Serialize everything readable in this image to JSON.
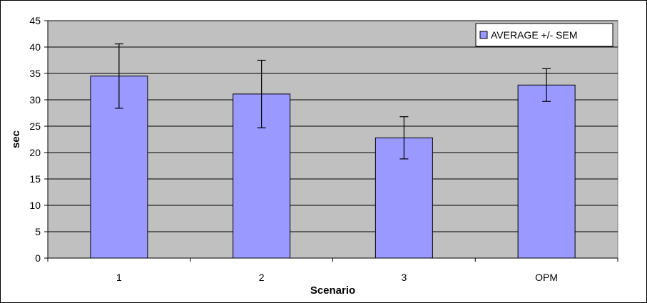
{
  "chart_data": {
    "type": "bar",
    "categories": [
      "1",
      "2",
      "3",
      "OPM"
    ],
    "series": [
      {
        "name": "AVERAGE +/- SEM",
        "values": [
          34.5,
          31.1,
          22.8,
          32.8
        ],
        "error": [
          6.1,
          6.4,
          4.0,
          3.1
        ]
      }
    ],
    "xlabel": "Scenario",
    "ylabel": "sec",
    "ylim": [
      0,
      45
    ],
    "yticks": [
      "0",
      "5",
      "10",
      "15",
      "20",
      "25",
      "30",
      "35",
      "40",
      "45"
    ],
    "grid": true,
    "legend_position": "top-right",
    "colors": {
      "bar": "#9999ff",
      "plot_background": "#c0c0c0",
      "gridline": "#000000",
      "bar_edge": "#000000"
    }
  }
}
